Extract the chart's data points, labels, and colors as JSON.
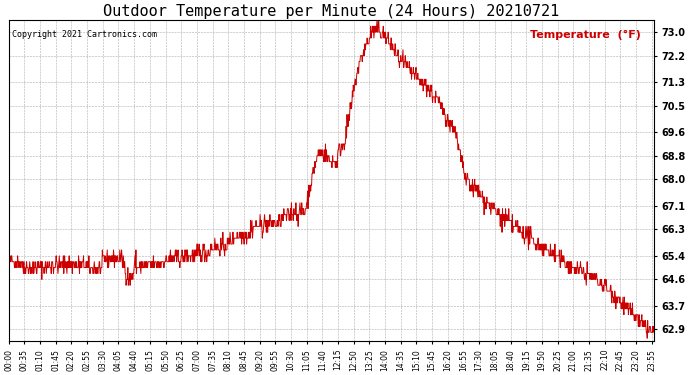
{
  "title": "Outdoor Temperature per Minute (24 Hours) 20210721",
  "copyright_text": "Copyright 2021 Cartronics.com",
  "legend_label": "Temperature  (°F)",
  "line_color": "#cc0000",
  "background_color": "#ffffff",
  "grid_color": "#999999",
  "title_fontsize": 11,
  "yticks": [
    62.9,
    63.7,
    64.6,
    65.4,
    66.3,
    67.1,
    68.0,
    68.8,
    69.6,
    70.5,
    71.3,
    72.2,
    73.0
  ],
  "xtick_labels": [
    "00:00",
    "00:35",
    "01:10",
    "01:45",
    "02:20",
    "02:55",
    "03:30",
    "04:05",
    "04:40",
    "05:15",
    "05:50",
    "06:25",
    "07:00",
    "07:35",
    "08:10",
    "08:45",
    "09:20",
    "09:55",
    "10:30",
    "11:05",
    "11:40",
    "12:15",
    "12:50",
    "13:25",
    "14:00",
    "14:35",
    "15:10",
    "15:45",
    "16:20",
    "16:55",
    "17:30",
    "18:05",
    "18:40",
    "19:15",
    "19:50",
    "20:25",
    "21:00",
    "21:35",
    "22:10",
    "22:45",
    "23:20",
    "23:55"
  ],
  "ylim": [
    62.5,
    73.4
  ],
  "xlim_minutes": [
    0,
    1440
  ],
  "figwidth": 6.9,
  "figheight": 3.75,
  "dpi": 100
}
